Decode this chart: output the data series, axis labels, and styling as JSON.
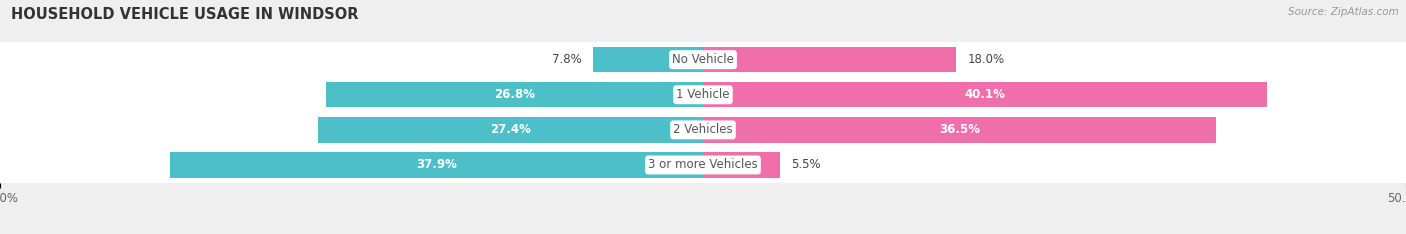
{
  "title": "HOUSEHOLD VEHICLE USAGE IN WINDSOR",
  "source": "Source: ZipAtlas.com",
  "categories": [
    "No Vehicle",
    "1 Vehicle",
    "2 Vehicles",
    "3 or more Vehicles"
  ],
  "owner_values": [
    7.8,
    26.8,
    27.4,
    37.9
  ],
  "renter_values": [
    18.0,
    40.1,
    36.5,
    5.5
  ],
  "owner_color": "#4DBFC8",
  "renter_color": "#F06FAB",
  "row_bg_color": "#FFFFFF",
  "fig_bg_color": "#EFEFEF",
  "axis_max": 50.0,
  "title_fontsize": 10.5,
  "bar_label_fontsize": 8.5,
  "tick_fontsize": 8.5,
  "source_fontsize": 7.5,
  "legend_fontsize": 8.5,
  "cat_label_fontsize": 8.5
}
